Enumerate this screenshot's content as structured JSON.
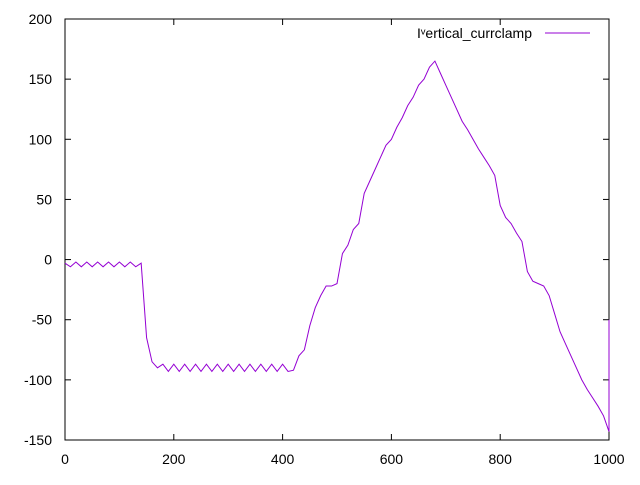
{
  "chart_data": {
    "type": "line",
    "x": [
      0,
      10,
      20,
      30,
      40,
      50,
      60,
      70,
      80,
      90,
      100,
      110,
      120,
      130,
      140,
      150,
      160,
      170,
      180,
      190,
      200,
      210,
      220,
      230,
      240,
      250,
      260,
      270,
      280,
      290,
      300,
      310,
      320,
      330,
      340,
      350,
      360,
      370,
      380,
      390,
      400,
      410,
      420,
      430,
      440,
      450,
      460,
      470,
      480,
      490,
      500,
      510,
      520,
      530,
      540,
      550,
      560,
      570,
      580,
      590,
      600,
      610,
      620,
      630,
      640,
      650,
      660,
      670,
      680,
      690,
      700,
      710,
      720,
      730,
      740,
      750,
      760,
      770,
      780,
      790,
      800,
      810,
      820,
      830,
      840,
      850,
      860,
      870,
      880,
      890,
      900,
      910,
      920,
      930,
      940,
      950,
      960,
      970,
      980,
      990,
      1000,
      1000
    ],
    "series": [
      {
        "name": "Iᵛertical_currclamp",
        "color": "#9400d3",
        "values": [
          -3,
          -6,
          -2,
          -6,
          -2,
          -6,
          -2,
          -6,
          -2,
          -6,
          -2,
          -6,
          -2,
          -6,
          -3,
          -65,
          -85,
          -90,
          -87,
          -93,
          -87,
          -93,
          -87,
          -93,
          -87,
          -93,
          -87,
          -93,
          -87,
          -93,
          -87,
          -93,
          -87,
          -93,
          -87,
          -93,
          -87,
          -93,
          -87,
          -93,
          -87,
          -93,
          -92,
          -80,
          -75,
          -55,
          -40,
          -30,
          -22,
          -22,
          -20,
          5,
          12,
          25,
          30,
          55,
          65,
          75,
          85,
          95,
          100,
          110,
          118,
          128,
          135,
          145,
          150,
          160,
          165,
          155,
          145,
          135,
          125,
          115,
          108,
          100,
          92,
          85,
          78,
          70,
          45,
          35,
          30,
          22,
          15,
          -10,
          -18,
          -20,
          -22,
          -30,
          -45,
          -60,
          -70,
          -80,
          -90,
          -100,
          -108,
          -115,
          -122,
          -130,
          -143,
          -50
        ]
      }
    ],
    "xlim": [
      0,
      1000
    ],
    "xticks": [
      0,
      200,
      400,
      600,
      800,
      1000
    ],
    "ylim": [
      -150,
      200
    ],
    "yticks": [
      -150,
      -100,
      -50,
      0,
      50,
      100,
      150,
      200
    ],
    "legend": "top-right"
  }
}
